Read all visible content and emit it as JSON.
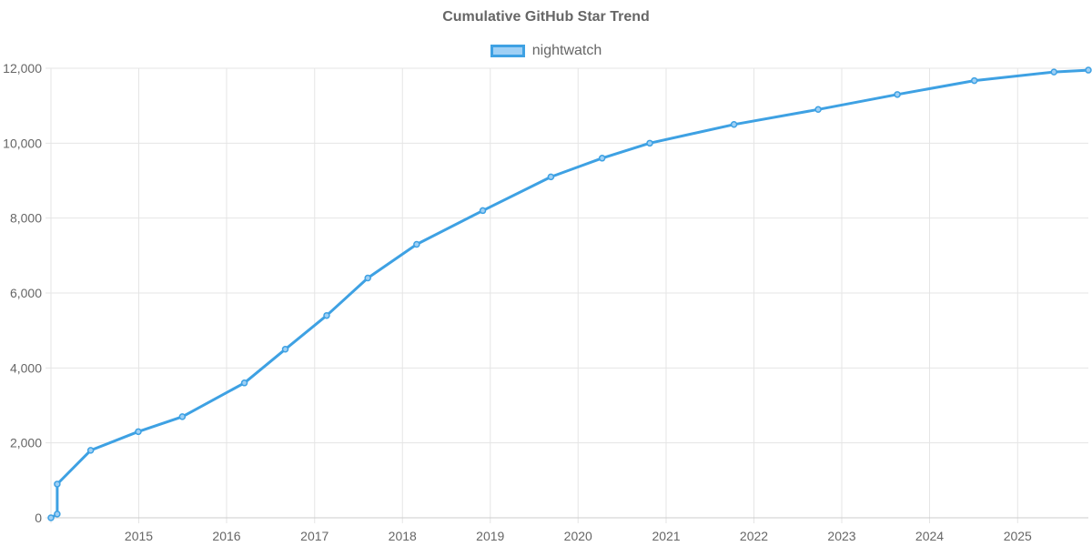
{
  "title": "Cumulative GitHub Star Trend",
  "colors": {
    "line": "#3ea1e3",
    "legend_fill": "#9fd0f5",
    "grid": "#e5e5e5",
    "axis_text": "#666666"
  },
  "chart_data": {
    "type": "line",
    "title": "Cumulative GitHub Star Trend",
    "xlabel": "",
    "ylabel": "",
    "x_type": "date",
    "xlim": [
      "2014-01-01",
      "2025-10-22"
    ],
    "ylim": [
      0,
      12000
    ],
    "x_ticks": [
      "2015",
      "2016",
      "2017",
      "2018",
      "2019",
      "2020",
      "2021",
      "2022",
      "2023",
      "2024",
      "2025"
    ],
    "y_ticks": [
      "0",
      "2,000",
      "4,000",
      "6,000",
      "8,000",
      "10,000",
      "12,000"
    ],
    "y_tick_values": [
      0,
      2000,
      4000,
      6000,
      8000,
      10000,
      12000
    ],
    "grid": true,
    "legend_position": "top-center",
    "series": [
      {
        "name": "nightwatch",
        "points": [
          {
            "x": "2014-01-01",
            "y": 0
          },
          {
            "x": "2014-01-27",
            "y": 100
          },
          {
            "x": "2014-01-27",
            "y": 900
          },
          {
            "x": "2014-06-15",
            "y": 1800
          },
          {
            "x": "2014-12-30",
            "y": 2300
          },
          {
            "x": "2015-07-01",
            "y": 2700
          },
          {
            "x": "2016-03-15",
            "y": 3600
          },
          {
            "x": "2016-09-01",
            "y": 4500
          },
          {
            "x": "2017-02-20",
            "y": 5400
          },
          {
            "x": "2017-08-10",
            "y": 6400
          },
          {
            "x": "2018-03-01",
            "y": 7300
          },
          {
            "x": "2018-12-01",
            "y": 8200
          },
          {
            "x": "2019-09-10",
            "y": 9100
          },
          {
            "x": "2020-04-10",
            "y": 9600
          },
          {
            "x": "2020-10-25",
            "y": 10000
          },
          {
            "x": "2021-10-10",
            "y": 10500
          },
          {
            "x": "2022-09-25",
            "y": 10900
          },
          {
            "x": "2023-08-20",
            "y": 11300
          },
          {
            "x": "2024-07-05",
            "y": 11670
          },
          {
            "x": "2025-06-01",
            "y": 11900
          },
          {
            "x": "2025-10-22",
            "y": 11950
          }
        ]
      }
    ]
  }
}
